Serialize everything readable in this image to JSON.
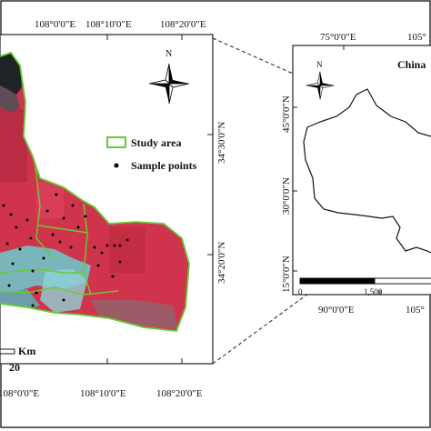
{
  "left_map": {
    "top_lon_labels": [
      "108°0'0\"E",
      "108°10'0\"E",
      "108°20'0\"E"
    ],
    "bottom_lon_labels": [
      "108°0'0\"E",
      "108°10'0\"E",
      "108°20'0\"E"
    ],
    "right_lat_labels": [
      "34°30'0\"N",
      "34°20'0\"N"
    ],
    "north_label": "N",
    "legend": {
      "study_area": "Study area",
      "sample_points": "Sample points"
    },
    "scalebar": {
      "unit": "Km",
      "value": "20"
    },
    "colors": {
      "vegetation": "#d0344c",
      "urban": "#6fc3c8",
      "boundary": "#66cc33",
      "mountain": "#1f2326"
    }
  },
  "right_map": {
    "title": "China",
    "top_lon_labels": [
      "75°0'0\"E",
      "105°"
    ],
    "bottom_lon_labels": [
      "90°0'0\"E",
      "105°"
    ],
    "left_lat_labels": [
      "45°0'0\"N",
      "30°0'0\"N",
      "15°0'0\"N"
    ],
    "north_label": "N",
    "scalebar": {
      "ticks": [
        "0",
        "1,500"
      ]
    }
  }
}
